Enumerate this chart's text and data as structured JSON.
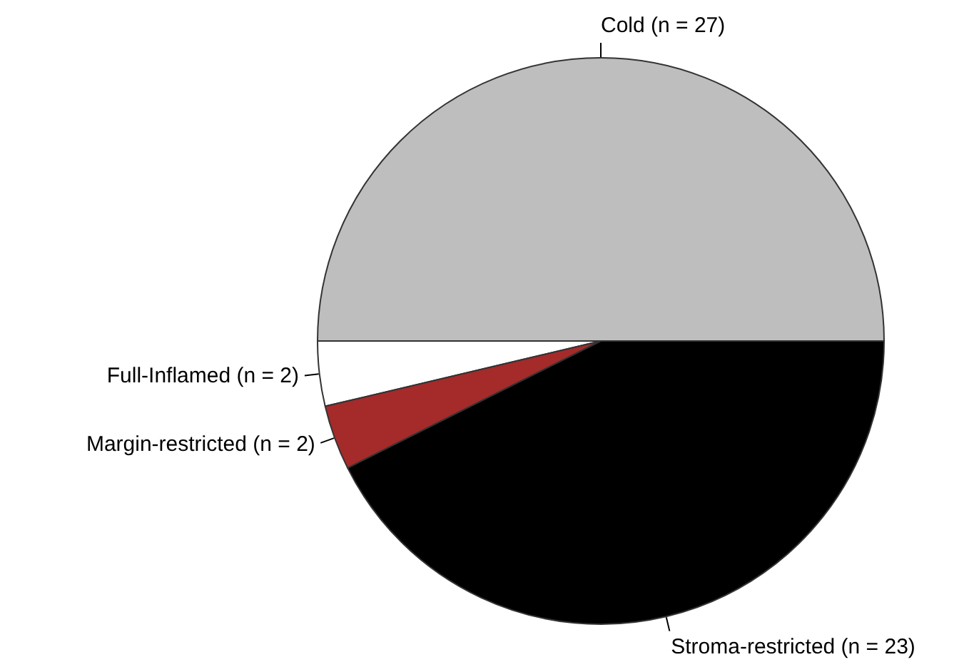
{
  "chart_data": {
    "type": "pie",
    "categories": [
      "Cold (n = 27)",
      "Full-Inflamed (n = 2)",
      "Margin-restricted (n = 2)",
      "Stroma-restricted (n = 23)"
    ],
    "values": [
      27,
      2,
      2,
      23
    ],
    "colors": [
      "#bebebe",
      "#ffffff",
      "#a52a2a",
      "#000000"
    ]
  }
}
